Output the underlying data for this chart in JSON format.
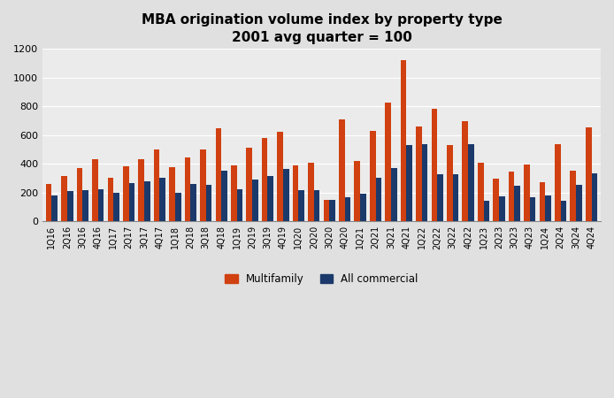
{
  "title_line1": "MBA origination volume index by property type",
  "title_line2": "2001 avg quarter = 100",
  "categories": [
    "1Q16",
    "2Q16",
    "3Q16",
    "4Q16",
    "1Q17",
    "2Q17",
    "3Q17",
    "4Q17",
    "1Q18",
    "2Q18",
    "3Q18",
    "4Q18",
    "1Q19",
    "2Q19",
    "3Q19",
    "4Q19",
    "1Q20",
    "2Q20",
    "3Q20",
    "4Q20",
    "1Q21",
    "2Q21",
    "3Q21",
    "4Q21",
    "1Q22",
    "2Q22",
    "3Q22",
    "4Q22",
    "1Q23",
    "2Q23",
    "3Q23",
    "4Q23",
    "1Q24",
    "2Q24",
    "3Q24",
    "4Q24"
  ],
  "multifamily": [
    260,
    315,
    370,
    430,
    305,
    385,
    430,
    500,
    380,
    445,
    500,
    650,
    390,
    510,
    580,
    620,
    390,
    405,
    150,
    710,
    420,
    630,
    825,
    1120,
    660,
    785,
    530,
    695,
    410,
    300,
    345,
    395,
    275,
    540,
    355,
    655
  ],
  "all_commercial": [
    180,
    210,
    215,
    225,
    200,
    265,
    280,
    305,
    200,
    260,
    255,
    350,
    225,
    290,
    315,
    365,
    215,
    215,
    150,
    170,
    195,
    305,
    370,
    530,
    535,
    330,
    325,
    535,
    145,
    175,
    250,
    170,
    180,
    145,
    255,
    335
  ],
  "multifamily_color": "#D04010",
  "all_commercial_color": "#1B3A6B",
  "ylim": [
    0,
    1200
  ],
  "yticks": [
    0,
    200,
    400,
    600,
    800,
    1000,
    1200
  ],
  "legend_multifamily": "Multifamily",
  "legend_all_commercial": "All commercial",
  "background_color": "#E0E0E0",
  "plot_area_color": "#EBEBEB",
  "grid_color": "#FFFFFF",
  "title_fontsize": 11,
  "subtitle_fontsize": 10,
  "tick_fontsize": 7,
  "legend_fontsize": 8.5
}
